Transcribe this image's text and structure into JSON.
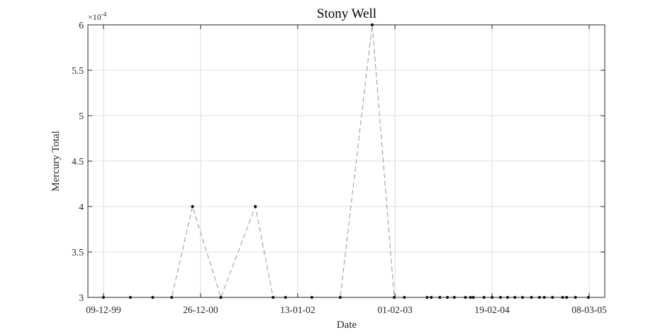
{
  "chart_data": {
    "type": "line",
    "title": "Stony Well",
    "xlabel": "Date",
    "ylabel": "Mercury  Total",
    "y_exponent_label": "×10",
    "y_exponent_power": "-4",
    "ylim": [
      3,
      6
    ],
    "y_ticks": [
      3,
      3.5,
      4,
      4.5,
      5,
      5.5,
      6
    ],
    "y_tick_labels": [
      "3",
      "3.5",
      "4",
      "4.5",
      "5",
      "5.5",
      "6"
    ],
    "xlim": [
      "1999-12-09",
      "2005-03-08"
    ],
    "x_ticks": [
      "1999-12-09",
      "2000-12-26",
      "2002-01-13",
      "2003-02-01",
      "2004-02-19",
      "2005-03-08"
    ],
    "x_tick_labels": [
      "09-12-99",
      "26-12-00",
      "13-01-02",
      "01-02-03",
      "19-02-04",
      "08-03-05"
    ],
    "grid": true,
    "line_color": "#a0a0a0",
    "marker_color": "#000000",
    "series": [
      {
        "x": [
          "1999-12-09",
          "2000-03-24",
          "2000-06-20",
          "2000-09-03",
          "2000-11-24",
          "2001-03-16",
          "2001-07-30",
          "2001-10-08",
          "2001-11-26",
          "2002-03-10",
          "2002-06-30",
          "2002-11-03",
          "2003-01-29",
          "2003-03-10",
          "2003-06-08",
          "2003-06-24",
          "2003-07-28",
          "2003-08-27",
          "2003-09-23",
          "2003-11-06",
          "2003-11-26",
          "2003-12-07",
          "2004-01-18",
          "2004-02-19",
          "2004-03-23",
          "2004-04-20",
          "2004-05-19",
          "2004-06-18",
          "2004-07-23",
          "2004-08-24",
          "2004-09-12",
          "2004-10-14",
          "2004-11-23",
          "2004-12-09",
          "2005-01-13",
          "2005-03-05"
        ],
        "y": [
          3,
          3,
          3,
          3,
          4,
          3,
          4,
          3,
          3,
          3,
          3,
          6,
          3,
          3,
          3,
          3,
          3,
          3,
          3,
          3,
          3,
          3,
          3,
          3,
          3,
          3,
          3,
          3,
          3,
          3,
          3,
          3,
          3,
          3,
          3,
          3
        ]
      }
    ]
  }
}
